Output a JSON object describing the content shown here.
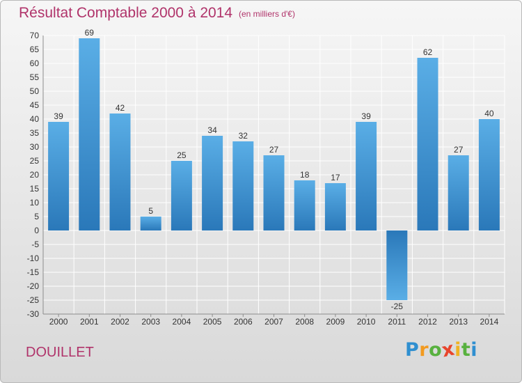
{
  "header": {
    "title": "Résultat Comptable 2000 à 2014",
    "subtitle": "(en milliers d'€)"
  },
  "commune": "DOUILLET",
  "brand": {
    "text": "Proxiti",
    "letter_colors": [
      "#2f8fd0",
      "#f29a1f",
      "#58b13f",
      "#e8452c",
      "#f0b323",
      "#58b13f",
      "#2f8fd0"
    ]
  },
  "colors": {
    "bar_light": "#5aaee6",
    "bar_dark": "#2a78b9",
    "title": "#b0336a",
    "grid": "#ffffff"
  },
  "chart_data": {
    "type": "bar",
    "title": "Résultat Comptable 2000 à 2014",
    "subtitle": "(en milliers d'€)",
    "categories": [
      "2000",
      "2001",
      "2002",
      "2003",
      "2004",
      "2005",
      "2006",
      "2007",
      "2008",
      "2009",
      "2010",
      "2011",
      "2012",
      "2013",
      "2014"
    ],
    "values": [
      39,
      69,
      42,
      5,
      25,
      34,
      32,
      27,
      18,
      17,
      39,
      -25,
      62,
      27,
      40
    ],
    "ylim": [
      -30,
      70
    ],
    "yticks": [
      70,
      65,
      60,
      55,
      50,
      45,
      40,
      35,
      30,
      25,
      20,
      15,
      10,
      5,
      0,
      -5,
      -10,
      -15,
      -20,
      -25,
      -30
    ],
    "grid": true,
    "data_labels": true,
    "legend": "none"
  }
}
